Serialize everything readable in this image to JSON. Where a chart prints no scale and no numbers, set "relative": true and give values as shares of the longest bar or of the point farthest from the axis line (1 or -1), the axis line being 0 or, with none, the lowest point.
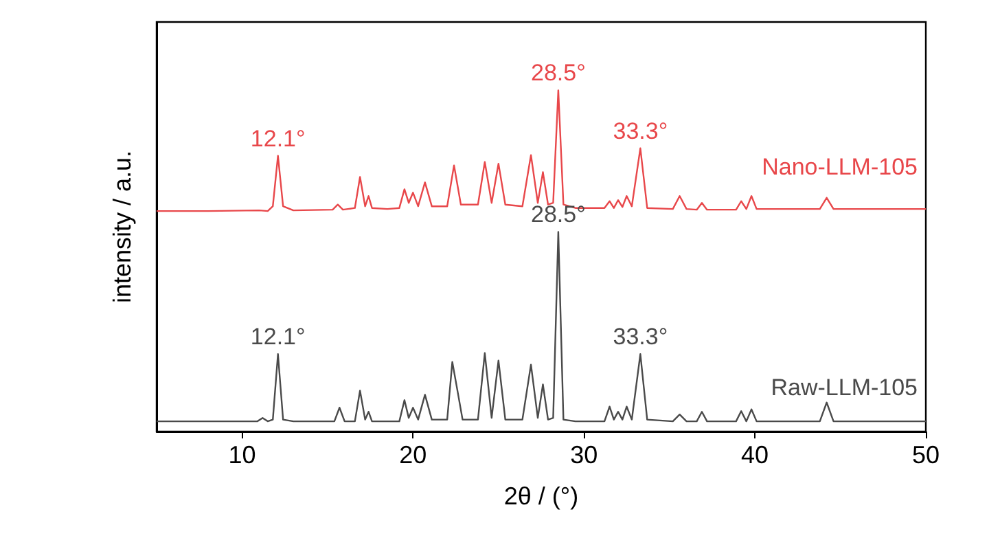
{
  "chart_data": {
    "type": "line",
    "relative": true,
    "xlabel": "2θ / (°)",
    "ylabel": "intensity / a.u.",
    "xlim": [
      5,
      50
    ],
    "xticks": [
      10,
      20,
      30,
      40,
      50
    ],
    "legend": false,
    "grid": false,
    "marker": "none",
    "line_style": "solid",
    "series": [
      {
        "name": "Nano-LLM-105",
        "color": "#e8474a",
        "x": [
          5,
          8,
          11,
          11.5,
          11.8,
          12.1,
          12.4,
          13,
          15.3,
          15.6,
          15.9,
          16.6,
          16.9,
          17.2,
          17.4,
          17.6,
          18.5,
          19.2,
          19.5,
          19.75,
          20,
          20.3,
          20.7,
          21.1,
          22.0,
          22.4,
          22.8,
          23.8,
          24.2,
          24.6,
          25.0,
          25.4,
          26.4,
          26.9,
          27.3,
          27.6,
          27.9,
          28.2,
          28.5,
          28.8,
          29.5,
          31.2,
          31.5,
          31.75,
          32.0,
          32.25,
          32.5,
          32.8,
          33.3,
          33.7,
          35.2,
          35.6,
          36.0,
          36.6,
          36.9,
          37.2,
          38.9,
          39.2,
          39.5,
          39.8,
          40.1,
          43.8,
          44.2,
          44.6,
          47,
          50
        ],
        "values": [
          0.646,
          0.646,
          0.648,
          0.646,
          0.66,
          0.808,
          0.66,
          0.648,
          0.65,
          0.665,
          0.65,
          0.655,
          0.746,
          0.66,
          0.69,
          0.655,
          0.652,
          0.655,
          0.71,
          0.67,
          0.7,
          0.66,
          0.73,
          0.66,
          0.66,
          0.78,
          0.665,
          0.665,
          0.79,
          0.67,
          0.785,
          0.665,
          0.66,
          0.81,
          0.67,
          0.76,
          0.665,
          0.67,
          1,
          0.665,
          0.655,
          0.655,
          0.675,
          0.655,
          0.678,
          0.658,
          0.69,
          0.66,
          0.83,
          0.655,
          0.652,
          0.69,
          0.652,
          0.65,
          0.67,
          0.65,
          0.65,
          0.675,
          0.652,
          0.69,
          0.652,
          0.652,
          0.685,
          0.652,
          0.652,
          0.652
        ]
      },
      {
        "name": "Raw-LLM-105",
        "color": "#4a4a4a",
        "x": [
          5,
          8,
          10.9,
          11.2,
          11.5,
          11.8,
          12.1,
          12.4,
          13,
          15.4,
          15.7,
          16.0,
          16.6,
          16.9,
          17.2,
          17.4,
          17.6,
          18.5,
          19.2,
          19.5,
          19.75,
          20,
          20.3,
          20.7,
          21.1,
          22.0,
          22.3,
          22.6,
          22.9,
          23.8,
          24.2,
          24.6,
          25.0,
          25.4,
          26.4,
          26.9,
          27.3,
          27.6,
          27.9,
          28.2,
          28.5,
          28.8,
          29.5,
          31.2,
          31.5,
          31.75,
          32.0,
          32.25,
          32.5,
          32.8,
          33.3,
          33.7,
          35.2,
          35.6,
          36.0,
          36.6,
          36.9,
          37.2,
          38.9,
          39.2,
          39.5,
          39.8,
          40.1,
          43.8,
          44.2,
          44.6,
          47,
          50
        ],
        "values": [
          0.03,
          0.03,
          0.03,
          0.04,
          0.03,
          0.035,
          0.227,
          0.035,
          0.03,
          0.03,
          0.07,
          0.03,
          0.03,
          0.12,
          0.035,
          0.058,
          0.03,
          0.03,
          0.03,
          0.092,
          0.04,
          0.07,
          0.035,
          0.108,
          0.035,
          0.035,
          0.204,
          0.12,
          0.035,
          0.035,
          0.23,
          0.04,
          0.208,
          0.035,
          0.035,
          0.196,
          0.04,
          0.138,
          0.035,
          0.04,
          0.585,
          0.035,
          0.03,
          0.03,
          0.073,
          0.035,
          0.058,
          0.035,
          0.073,
          0.035,
          0.227,
          0.035,
          0.03,
          0.05,
          0.03,
          0.03,
          0.058,
          0.03,
          0.03,
          0.06,
          0.03,
          0.065,
          0.03,
          0.03,
          0.085,
          0.03,
          0.03,
          0.03
        ]
      }
    ],
    "annotations": [
      {
        "text": "12.1°",
        "x": 12.1,
        "y": 0.808
      },
      {
        "text": "28.5°",
        "x": 28.5,
        "y": 1
      },
      {
        "text": "33.3°",
        "x": 33.3,
        "y": 0.83
      },
      {
        "text": "12.1°",
        "x": 12.1,
        "y": 0.227
      },
      {
        "text": "28.5°",
        "x": 28.5,
        "y": 0.585
      },
      {
        "text": "33.3°",
        "x": 33.3,
        "y": 0.227
      }
    ]
  }
}
